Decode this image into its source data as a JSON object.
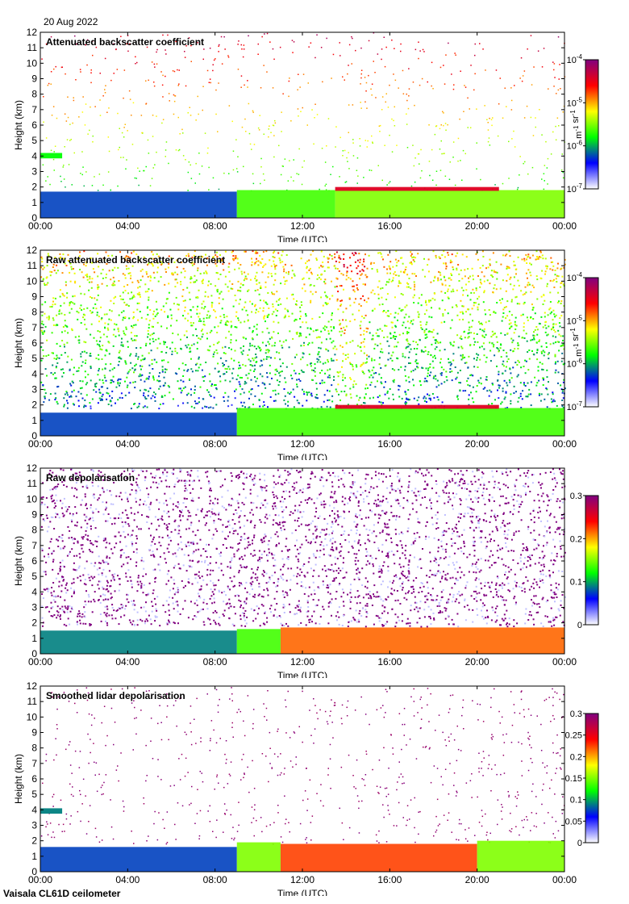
{
  "header": {
    "date": "20 Aug 2022"
  },
  "footer": {
    "instrument": "Vaisala CL61D ceilometer"
  },
  "chart_data": [
    {
      "type": "heatmap",
      "title": "Attenuated backscatter coefficient",
      "xlabel": "Time (UTC)",
      "ylabel": "Height (km)",
      "xticks": [
        "00:00",
        "04:00",
        "08:00",
        "12:00",
        "16:00",
        "20:00",
        "00:00"
      ],
      "xlim_hours": [
        0,
        24
      ],
      "ylim": [
        0,
        12
      ],
      "yticks": [
        0,
        1,
        2,
        3,
        4,
        5,
        6,
        7,
        8,
        9,
        10,
        11,
        12
      ],
      "colorbar": {
        "scale": "log",
        "range": [
          1e-07,
          0.0001
        ],
        "ticks": [
          "10-7",
          "10-6",
          "10-5",
          "10-4"
        ],
        "units": "m-1 sr-1",
        "colormap": [
          "#ffffff",
          "#0000ff",
          "#00ff00",
          "#ffff00",
          "#ff0000",
          "#800080"
        ]
      },
      "layers": [
        {
          "feature": "boundary layer",
          "start_h": 0,
          "end_h": 9,
          "top_km": 1.7,
          "level": 0.25
        },
        {
          "feature": "boundary layer",
          "start_h": 9,
          "end_h": 13.5,
          "top_km": 1.8,
          "level": 0.45
        },
        {
          "feature": "boundary layer",
          "start_h": 13.5,
          "end_h": 24,
          "top_km": 1.8,
          "level": 0.5
        },
        {
          "feature": "cloud base",
          "start_h": 13.5,
          "end_h": 21,
          "top_km": 2.0,
          "level": 0.85
        },
        {
          "feature": "elevated layer",
          "start_h": 0,
          "end_h": 1,
          "top_km": 4.2,
          "level": 0.4
        }
      ],
      "noise": "sparse above boundary layer"
    },
    {
      "type": "heatmap",
      "title": "Raw attenuated backscatter coefficient",
      "xlabel": "Time (UTC)",
      "ylabel": "Height (km)",
      "xticks": [
        "00:00",
        "04:00",
        "08:00",
        "12:00",
        "16:00",
        "20:00",
        "00:00"
      ],
      "xlim_hours": [
        0,
        24
      ],
      "ylim": [
        0,
        12
      ],
      "yticks": [
        0,
        1,
        2,
        3,
        4,
        5,
        6,
        7,
        8,
        9,
        10,
        11,
        12
      ],
      "colorbar": {
        "scale": "log",
        "range": [
          1e-07,
          0.0001
        ],
        "ticks": [
          "10-7",
          "10-6",
          "10-5",
          "10-4"
        ],
        "units": "m-1 sr-1",
        "colormap": [
          "#ffffff",
          "#0000ff",
          "#00ff00",
          "#ffff00",
          "#ff0000",
          "#800080"
        ]
      },
      "layers": [
        {
          "feature": "boundary layer",
          "start_h": 0,
          "end_h": 9,
          "top_km": 1.5,
          "level": 0.25
        },
        {
          "feature": "boundary layer",
          "start_h": 9,
          "end_h": 24,
          "top_km": 1.8,
          "level": 0.45
        },
        {
          "feature": "cloud base",
          "start_h": 13.5,
          "end_h": 21,
          "top_km": 2.0,
          "level": 0.85
        }
      ],
      "noise": "dense, level increasing with height"
    },
    {
      "type": "heatmap",
      "title": "Raw depolarisation",
      "xlabel": "Time (UTC)",
      "ylabel": "Height (km)",
      "xticks": [
        "00:00",
        "04:00",
        "08:00",
        "12:00",
        "16:00",
        "20:00",
        "00:00"
      ],
      "xlim_hours": [
        0,
        24
      ],
      "ylim": [
        0,
        12
      ],
      "yticks": [
        0,
        1,
        2,
        3,
        4,
        5,
        6,
        7,
        8,
        9,
        10,
        11,
        12
      ],
      "colorbar": {
        "scale": "linear",
        "range": [
          0,
          0.3
        ],
        "ticks": [
          "0",
          "0.1",
          "0.2",
          "0.3"
        ],
        "units": "",
        "colormap": [
          "#ffffff",
          "#0000ff",
          "#00ff00",
          "#ffff00",
          "#ff0000",
          "#800080"
        ]
      },
      "layers": [
        {
          "feature": "boundary layer",
          "start_h": 0,
          "end_h": 9,
          "top_km": 1.5,
          "level": 0.3
        },
        {
          "feature": "boundary layer",
          "start_h": 9,
          "end_h": 11,
          "top_km": 1.6,
          "level": 0.45
        },
        {
          "feature": "boundary layer",
          "start_h": 11,
          "end_h": 24,
          "top_km": 1.7,
          "level": 0.72
        }
      ],
      "noise": "dense purple/white speckle above boundary layer"
    },
    {
      "type": "heatmap",
      "title": "Smoothed lidar depolarisation",
      "xlabel": "Time (UTC)",
      "ylabel": "Height (km)",
      "xticks": [
        "00:00",
        "04:00",
        "08:00",
        "12:00",
        "16:00",
        "20:00",
        "00:00"
      ],
      "xlim_hours": [
        0,
        24
      ],
      "ylim": [
        0,
        12
      ],
      "yticks": [
        0,
        1,
        2,
        3,
        4,
        5,
        6,
        7,
        8,
        9,
        10,
        11,
        12
      ],
      "colorbar": {
        "scale": "linear",
        "range": [
          0,
          0.3
        ],
        "ticks": [
          "0",
          "0.05",
          "0.1",
          "0.15",
          "0.2",
          "0.25",
          "0.3"
        ],
        "units": "",
        "colormap": [
          "#ffffff",
          "#0000ff",
          "#00ff00",
          "#ffff00",
          "#ff0000",
          "#800080"
        ]
      },
      "layers": [
        {
          "feature": "boundary layer",
          "start_h": 0,
          "end_h": 9,
          "top_km": 1.6,
          "level": 0.25
        },
        {
          "feature": "boundary layer",
          "start_h": 9,
          "end_h": 11,
          "top_km": 1.9,
          "level": 0.5
        },
        {
          "feature": "boundary layer",
          "start_h": 11,
          "end_h": 20,
          "top_km": 1.8,
          "level": 0.75
        },
        {
          "feature": "boundary layer",
          "start_h": 20,
          "end_h": 24,
          "top_km": 2.0,
          "level": 0.5
        },
        {
          "feature": "elevated layer",
          "start_h": 0,
          "end_h": 1,
          "top_km": 4.1,
          "level": 0.3
        }
      ],
      "noise": "sparse purple dots above boundary layer"
    }
  ]
}
